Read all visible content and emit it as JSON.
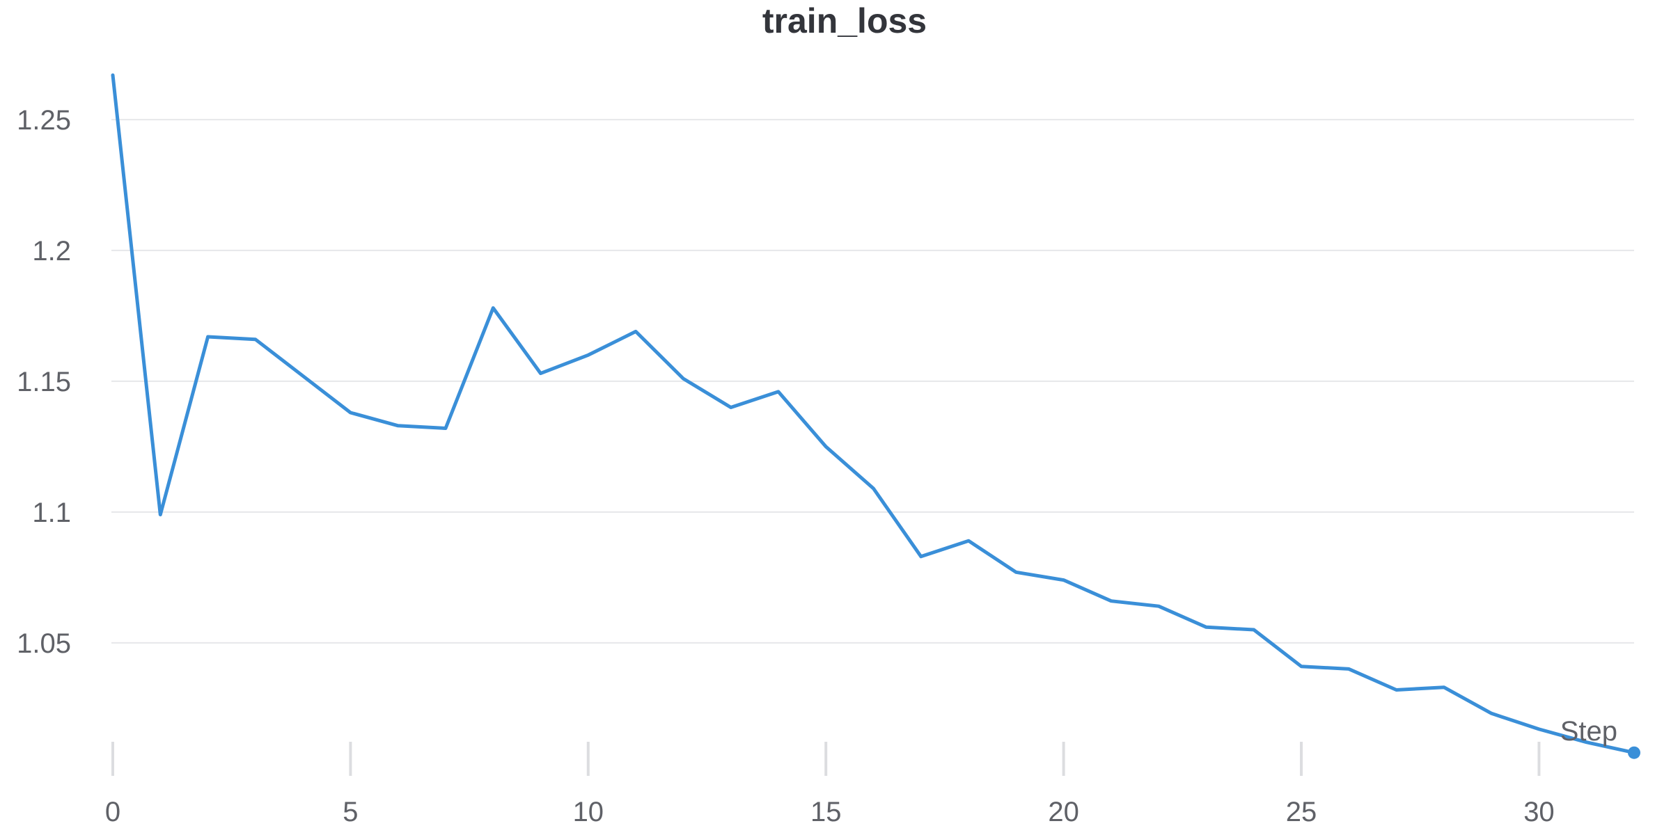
{
  "chart_data": {
    "type": "line",
    "title": "train_loss",
    "xlabel": "Step",
    "ylabel": "",
    "xlim": [
      0,
      32
    ],
    "ylim": [
      1.005,
      1.267
    ],
    "x_ticks": [
      0,
      5,
      10,
      15,
      20,
      25,
      30
    ],
    "y_ticks": [
      1.05,
      1.1,
      1.15,
      1.2,
      1.25
    ],
    "y_tick_labels": [
      "1.05",
      "1.1",
      "1.15",
      "1.2",
      "1.25"
    ],
    "grid": true,
    "series": [
      {
        "name": "train_loss",
        "color": "#3a8fd8",
        "x": [
          0,
          1,
          2,
          3,
          4,
          5,
          6,
          7,
          8,
          9,
          10,
          11,
          12,
          13,
          14,
          15,
          16,
          17,
          18,
          19,
          20,
          21,
          22,
          23,
          24,
          25,
          26,
          27,
          28,
          29,
          30,
          31,
          32
        ],
        "values": [
          1.267,
          1.099,
          1.167,
          1.166,
          1.152,
          1.138,
          1.133,
          1.132,
          1.178,
          1.153,
          1.16,
          1.169,
          1.151,
          1.14,
          1.146,
          1.125,
          1.109,
          1.083,
          1.089,
          1.077,
          1.074,
          1.066,
          1.064,
          1.056,
          1.055,
          1.041,
          1.04,
          1.032,
          1.033,
          1.023,
          1.017,
          1.012,
          1.008
        ]
      }
    ]
  }
}
